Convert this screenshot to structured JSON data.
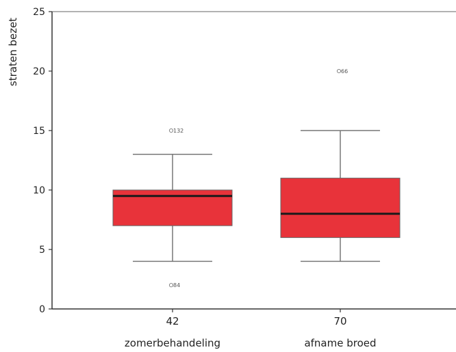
{
  "chart_data": {
    "type": "boxplot",
    "ylabel": "straten bezet",
    "ylim": [
      0,
      25
    ],
    "yticks": [
      0,
      5,
      10,
      15,
      20,
      25
    ],
    "box_color": "#e8333a",
    "groups": [
      {
        "count_label": "42",
        "name": "zomerbehandeling",
        "whisker_low": 4,
        "q1": 7,
        "median": 9.5,
        "q3": 10,
        "whisker_high": 13,
        "outliers": [
          {
            "value": 15,
            "label": "132"
          },
          {
            "value": 2,
            "label": "84"
          }
        ]
      },
      {
        "count_label": "70",
        "name": "afname broed",
        "whisker_low": 4,
        "q1": 6,
        "median": 8,
        "q3": 11,
        "whisker_high": 15,
        "outliers": [
          {
            "value": 20,
            "label": "66"
          }
        ]
      }
    ]
  }
}
